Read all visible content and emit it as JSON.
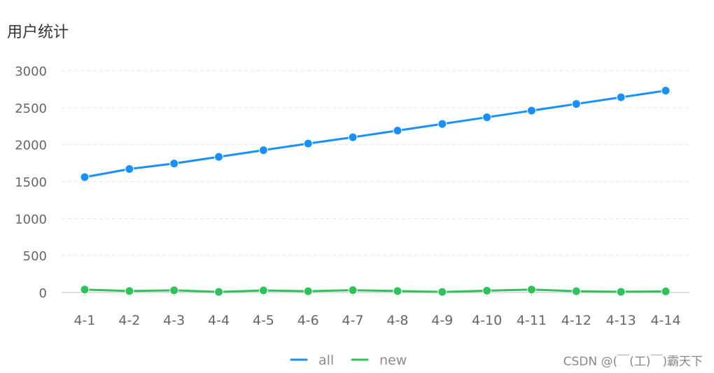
{
  "chart_data": {
    "type": "line",
    "title": "用户统计",
    "categories": [
      "4-1",
      "4-2",
      "4-3",
      "4-4",
      "4-5",
      "4-6",
      "4-7",
      "4-8",
      "4-9",
      "4-10",
      "4-11",
      "4-12",
      "4-13",
      "4-14"
    ],
    "series": [
      {
        "name": "all",
        "color": "#1890ff",
        "values": [
          1560,
          1670,
          1745,
          1835,
          1925,
          2015,
          2100,
          2190,
          2280,
          2370,
          2460,
          2550,
          2640,
          2730
        ]
      },
      {
        "name": "new",
        "color": "#2fc25b",
        "values": [
          40,
          20,
          30,
          8,
          28,
          18,
          32,
          20,
          8,
          25,
          40,
          18,
          10,
          15
        ]
      }
    ],
    "yticks": [
      0,
      500,
      1000,
      1500,
      2000,
      2500,
      3000
    ],
    "ylim": [
      0,
      3000
    ],
    "grid": true,
    "legend_position": "bottom"
  },
  "watermark": "CSDN @(￣(工)￣)霸天下"
}
